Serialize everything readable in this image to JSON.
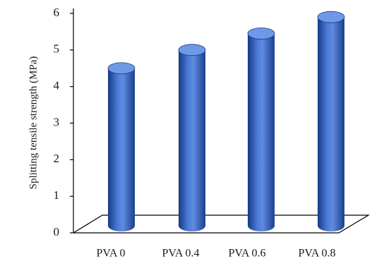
{
  "chart_data": {
    "type": "bar",
    "style": "3d-cylinder",
    "title": "",
    "xlabel": "",
    "ylabel": "Splitting tensile strength (MPa)",
    "categories": [
      "PVA 0",
      "PVA 0.4",
      "PVA 0.6",
      "PVA 0.8"
    ],
    "values": [
      4.5,
      5.0,
      5.45,
      5.9
    ],
    "ylim": [
      0,
      6
    ],
    "yticks": [
      "0",
      "1",
      "2",
      "3",
      "4",
      "5",
      "6"
    ],
    "grid": false,
    "legend": "none",
    "colors": {
      "bar": "#2f5fbf",
      "bar_dark": "#183a86",
      "bar_light": "#6f99e6",
      "axis": "#000000"
    }
  }
}
